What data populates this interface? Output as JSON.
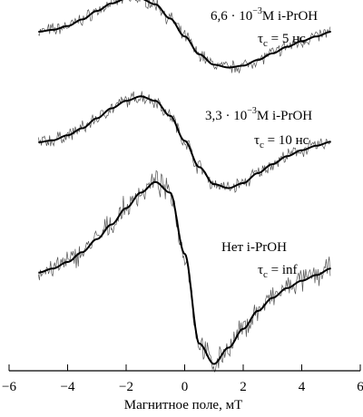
{
  "chart_data": {
    "type": "line",
    "xlabel": "Магнитное поле, мТ",
    "ylabel": "",
    "xlim": [
      -6,
      6
    ],
    "xticks": [
      "-6",
      "-4",
      "-2",
      "0",
      "2",
      "4",
      "6"
    ],
    "grid": false,
    "legend": "none",
    "line_color": "#000000",
    "noise_color": "#555555",
    "x": [
      -5,
      -4.5,
      -4,
      -3.5,
      -3,
      -2.5,
      -2,
      -1.5,
      -1,
      -0.5,
      0,
      0.5,
      1,
      1.5,
      2,
      2.5,
      3,
      3.5,
      4,
      4.5,
      5
    ],
    "series": [
      {
        "annotation_line1": {
          "prefix": "6,6 · 10",
          "exponent": "−3",
          "suffix": "M  i-PrOH"
        },
        "annotation_line2": {
          "tau": "τ",
          "tau_sub": "c",
          "value": " = 5 нс"
        },
        "values": [
          0.02,
          0.06,
          0.14,
          0.28,
          0.46,
          0.62,
          0.72,
          0.72,
          0.6,
          0.3,
          -0.08,
          -0.46,
          -0.68,
          -0.74,
          -0.7,
          -0.58,
          -0.44,
          -0.3,
          -0.18,
          -0.08,
          0.02
        ]
      },
      {
        "annotation_line1": {
          "prefix": "3,3 · 10",
          "exponent": "−3",
          "suffix": "M  i-PrOH"
        },
        "annotation_line2": {
          "tau": "τ",
          "tau_sub": "c",
          "value": " = 10 нс"
        },
        "values": [
          0.02,
          0.06,
          0.16,
          0.3,
          0.5,
          0.7,
          0.85,
          0.94,
          0.85,
          0.55,
          0.05,
          -0.48,
          -0.82,
          -0.9,
          -0.8,
          -0.6,
          -0.42,
          -0.26,
          -0.14,
          -0.05,
          0.03
        ]
      },
      {
        "annotation_line1": {
          "prefix": "Нет i-PrOH",
          "exponent": "",
          "suffix": ""
        },
        "annotation_line2": {
          "tau": "τ",
          "tau_sub": "c",
          "value": " = inf"
        },
        "values": [
          -0.03,
          0.02,
          0.1,
          0.22,
          0.38,
          0.56,
          0.76,
          0.95,
          1.08,
          0.95,
          0.2,
          -0.9,
          -1.15,
          -0.95,
          -0.72,
          -0.5,
          -0.34,
          -0.22,
          -0.13,
          -0.06,
          0.02
        ]
      }
    ]
  }
}
